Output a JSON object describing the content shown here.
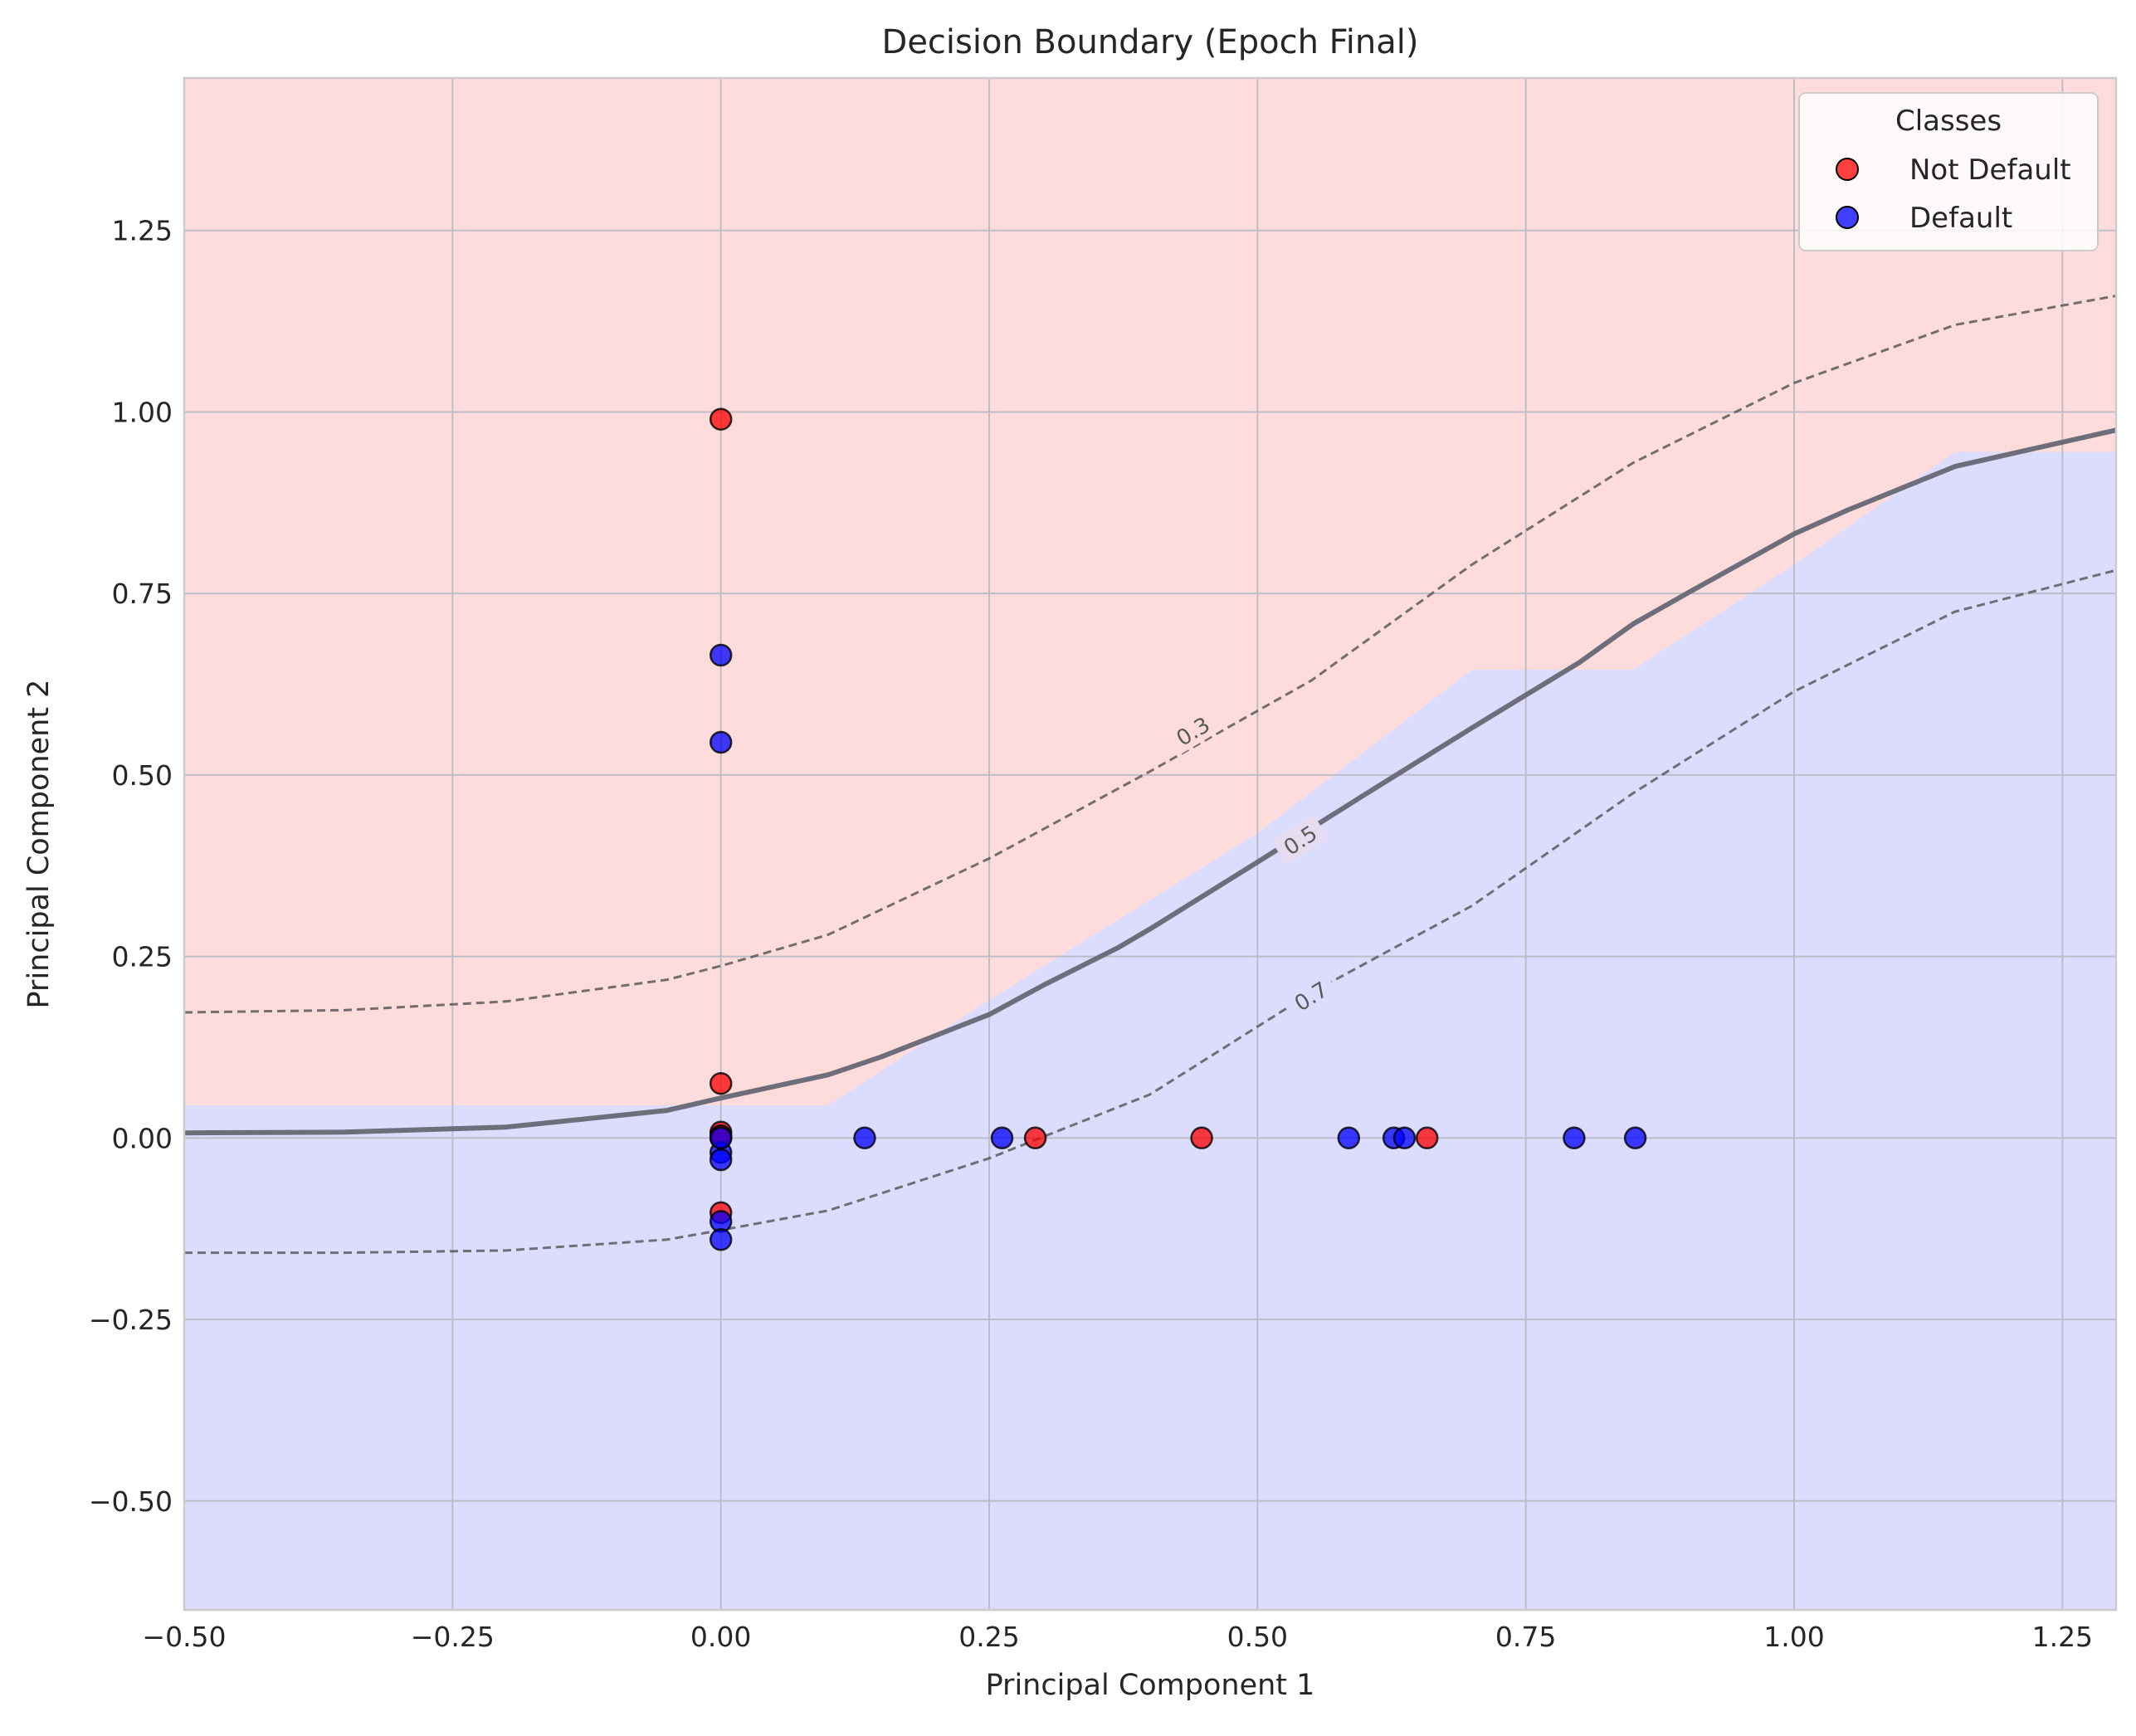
{
  "chart_data": {
    "type": "scatter",
    "title": "Decision Boundary (Epoch Final)",
    "xlabel": "Principal Component 1",
    "ylabel": "Principal Component 2",
    "xlim": [
      -0.5,
      1.3
    ],
    "ylim": [
      -0.65,
      1.46
    ],
    "grid": true,
    "x_ticks": [
      -0.5,
      -0.25,
      0.0,
      0.25,
      0.5,
      0.75,
      1.0,
      1.25
    ],
    "x_tick_labels": [
      "−0.50",
      "−0.25",
      "0.00",
      "0.25",
      "0.50",
      "0.75",
      "1.00",
      "1.25"
    ],
    "y_ticks": [
      -0.5,
      -0.25,
      0.0,
      0.25,
      0.5,
      0.75,
      1.0,
      1.25
    ],
    "y_tick_labels": [
      "−0.50",
      "−0.25",
      "0.00",
      "0.25",
      "0.50",
      "0.75",
      "1.00",
      "1.25"
    ],
    "legend": {
      "title": "Classes",
      "position": "top-right",
      "entries": [
        {
          "label": "Not Default",
          "color": "#ff0000"
        },
        {
          "label": "Default",
          "color": "#0000ff"
        }
      ]
    },
    "region_colors": {
      "not_default": "#ffdcdc",
      "default": "#dcdcff"
    },
    "boundary": [
      [
        -0.5,
        0.007
      ],
      [
        -0.35,
        0.008
      ],
      [
        -0.2,
        0.015
      ],
      [
        -0.05,
        0.038
      ],
      [
        0.0,
        0.055
      ],
      [
        0.1,
        0.087
      ],
      [
        0.15,
        0.112
      ],
      [
        0.25,
        0.17
      ],
      [
        0.3,
        0.21
      ],
      [
        0.37,
        0.262
      ],
      [
        0.4,
        0.288
      ],
      [
        0.5,
        0.38
      ],
      [
        0.6,
        0.473
      ],
      [
        0.7,
        0.565
      ],
      [
        0.75,
        0.61
      ],
      [
        0.8,
        0.655
      ],
      [
        0.85,
        0.708
      ],
      [
        0.9,
        0.75
      ],
      [
        1.0,
        0.832
      ],
      [
        1.05,
        0.865
      ],
      [
        1.15,
        0.925
      ],
      [
        1.3,
        0.975
      ]
    ],
    "region_edge": [
      [
        -0.5,
        0.045
      ],
      [
        -0.05,
        0.045
      ],
      [
        0.1,
        0.045
      ],
      [
        0.25,
        0.19
      ],
      [
        0.5,
        0.42
      ],
      [
        0.7,
        0.645
      ],
      [
        0.85,
        0.645
      ],
      [
        1.0,
        0.79
      ],
      [
        1.15,
        0.945
      ],
      [
        1.3,
        0.945
      ]
    ],
    "contours": [
      {
        "level": "0.3",
        "label_x": 0.44,
        "label_y": 0.56,
        "label_angle": -31,
        "points": [
          [
            -0.5,
            0.173
          ],
          [
            -0.35,
            0.176
          ],
          [
            -0.2,
            0.188
          ],
          [
            -0.05,
            0.218
          ],
          [
            0.0,
            0.237
          ],
          [
            0.1,
            0.28
          ],
          [
            0.25,
            0.385
          ],
          [
            0.4,
            0.505
          ],
          [
            0.55,
            0.63
          ],
          [
            0.7,
            0.79
          ],
          [
            0.85,
            0.93
          ],
          [
            1.0,
            1.04
          ],
          [
            1.15,
            1.12
          ],
          [
            1.3,
            1.16
          ]
        ]
      },
      {
        "level": "0.5",
        "label_x": 0.54,
        "label_y": 0.41,
        "label_angle": -33,
        "points": []
      },
      {
        "level": "0.7",
        "label_x": 0.55,
        "label_y": 0.195,
        "label_angle": -32,
        "points": [
          [
            -0.5,
            -0.158
          ],
          [
            -0.35,
            -0.158
          ],
          [
            -0.2,
            -0.155
          ],
          [
            -0.05,
            -0.14
          ],
          [
            0.0,
            -0.127
          ],
          [
            0.1,
            -0.1
          ],
          [
            0.25,
            -0.028
          ],
          [
            0.4,
            0.06
          ],
          [
            0.55,
            0.2
          ],
          [
            0.7,
            0.32
          ],
          [
            0.85,
            0.475
          ],
          [
            1.0,
            0.615
          ],
          [
            1.15,
            0.725
          ],
          [
            1.3,
            0.782
          ]
        ]
      }
    ],
    "series": [
      {
        "name": "Not Default",
        "color": "#ff0000",
        "x": [
          0.0,
          0.0,
          0.0,
          0.0,
          0.0,
          0.0,
          0.293,
          0.448,
          0.658
        ],
        "y": [
          0.99,
          0.075,
          0.008,
          0.003,
          0.0,
          -0.103,
          0.0,
          0.0,
          0.0
        ]
      },
      {
        "name": "Default",
        "color": "#0000ff",
        "x": [
          0.0,
          0.0,
          0.0,
          0.0,
          0.0,
          0.0,
          0.0,
          0.134,
          0.262,
          0.585,
          0.627,
          0.637,
          0.795,
          0.852
        ],
        "y": [
          0.665,
          0.545,
          -0.02,
          -0.03,
          -0.115,
          -0.14,
          0.0,
          0.0,
          0.0,
          0.0,
          0.0,
          0.0,
          0.0,
          0.0
        ]
      }
    ]
  }
}
